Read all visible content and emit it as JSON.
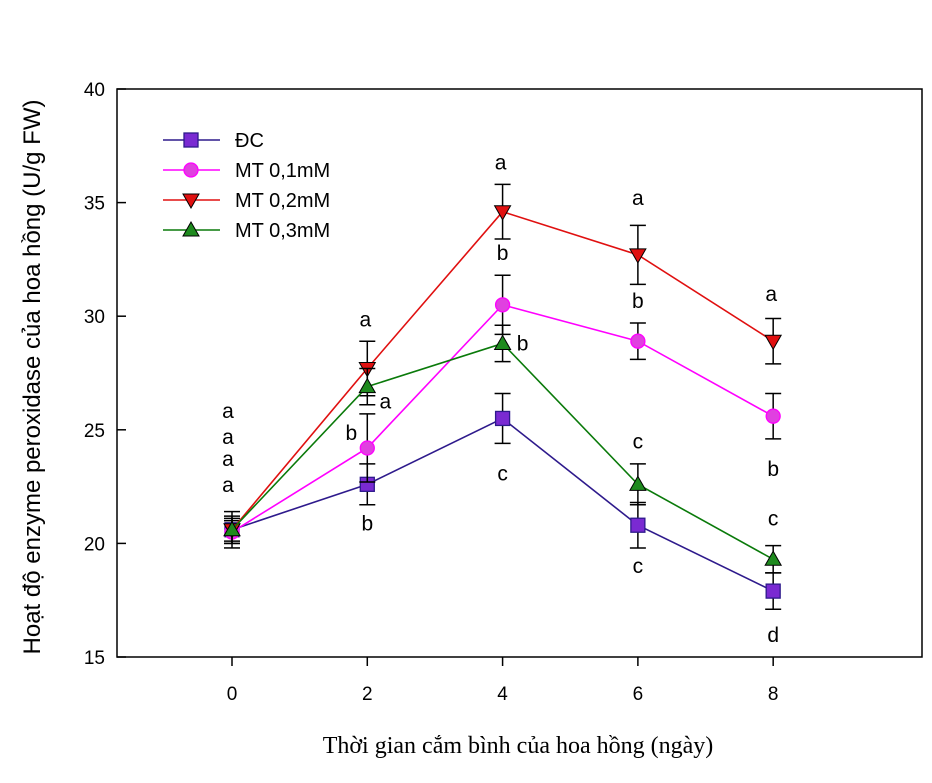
{
  "chart_data": {
    "type": "line",
    "xlabel": "Thời gian cắm bình của hoa hồng (ngày)",
    "ylabel": "Hoạt độ enzyme peroxidase của hoa hồng (U/g FW)",
    "xlim": [
      -1.7,
      10.2
    ],
    "ylim": [
      15,
      40
    ],
    "xticks": [
      0,
      2,
      4,
      6,
      8
    ],
    "yticks": [
      15,
      20,
      25,
      30,
      35,
      40
    ],
    "grid": false,
    "legend_position": "top-left",
    "x": [
      0,
      2,
      4,
      6,
      8
    ],
    "series": [
      {
        "name": "ĐC",
        "marker": "square",
        "color": "#2e1a8c",
        "fill": "#7a2ad2",
        "values": [
          20.6,
          22.6,
          25.5,
          20.8,
          17.9
        ],
        "errors": [
          0.8,
          0.9,
          1.1,
          1.0,
          0.8
        ],
        "letters": [
          "a",
          "b",
          "c",
          "c",
          "d"
        ]
      },
      {
        "name": "MT 0,1mM",
        "marker": "circle",
        "color": "#ff00ff",
        "fill": "#e040e0",
        "values": [
          20.5,
          24.2,
          30.5,
          28.9,
          25.6
        ],
        "errors": [
          0.5,
          1.5,
          1.3,
          0.8,
          1.0
        ],
        "letters": [
          "a",
          "b",
          "b",
          "b",
          "b"
        ]
      },
      {
        "name": "MT 0,2mM",
        "marker": "triangle-down",
        "color": "#e01010",
        "fill": "#e01010",
        "values": [
          20.6,
          27.7,
          34.6,
          32.7,
          28.9
        ],
        "errors": [
          0.6,
          1.2,
          1.2,
          1.3,
          1.0
        ],
        "letters": [
          "a",
          "a",
          "a",
          "a",
          "a"
        ]
      },
      {
        "name": "MT 0,3mM",
        "marker": "triangle-up",
        "color": "#0a7a0a",
        "fill": "#1e8a1e",
        "values": [
          20.6,
          26.9,
          28.8,
          22.6,
          19.3
        ],
        "errors": [
          0.5,
          0.8,
          0.8,
          0.9,
          0.6
        ],
        "letters": [
          "a",
          "a",
          "b",
          "c",
          "c"
        ]
      }
    ]
  }
}
